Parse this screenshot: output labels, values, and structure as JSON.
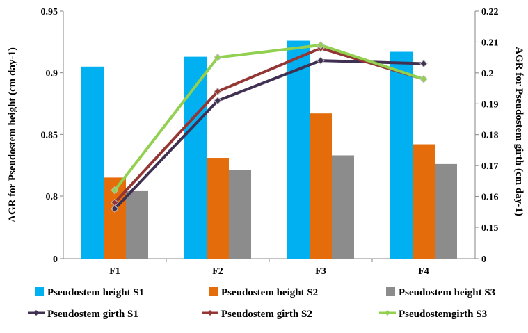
{
  "chart_data": {
    "type": "bar+line",
    "categories": [
      "F1",
      "F2",
      "F3",
      "F4"
    ],
    "left_axis": {
      "label": "AGR for Pseudostem height (cm day-1)",
      "ticks": [
        "0",
        "0.8",
        "0.85",
        "0.9",
        "0.95"
      ],
      "tick_values": [
        0,
        0.8,
        0.85,
        0.9,
        0.95
      ],
      "note": "axis break: 0 shown at bottom, scale runs 0.75 to 0.95"
    },
    "right_axis": {
      "label": "AGR for Pseudostem girth (cm day-1)",
      "ticks": [
        "0",
        "0.15",
        "0.16",
        "0.17",
        "0.18",
        "0.19",
        "0.2",
        "0.21",
        "0.22"
      ],
      "tick_values": [
        0,
        0.15,
        0.16,
        0.17,
        0.18,
        0.19,
        0.2,
        0.21,
        0.22
      ],
      "note": "axis break: 0 shown at bottom, scale runs 0.14 to 0.22"
    },
    "bar_series": [
      {
        "name": "Pseudostem height S1",
        "color": "#00b0f0",
        "values": [
          0.905,
          0.913,
          0.926,
          0.917
        ]
      },
      {
        "name": "Pseudostem height S2",
        "color": "#e46c0a",
        "values": [
          0.815,
          0.831,
          0.867,
          0.842
        ]
      },
      {
        "name": "Pseudostem height S3",
        "color": "#8c8c8c",
        "values": [
          0.804,
          0.821,
          0.833,
          0.826
        ]
      }
    ],
    "line_series": [
      {
        "name": "Pseudostem girth S1",
        "color": "#403152",
        "marker": "diamond",
        "values": [
          0.156,
          0.191,
          0.204,
          0.203
        ]
      },
      {
        "name": "Pseudostem girth S2",
        "color": "#943634",
        "marker": "diamond",
        "values": [
          0.158,
          0.194,
          0.208,
          0.198
        ]
      },
      {
        "name": "Pseudostemgirth S3",
        "color": "#92d050",
        "marker": "diamond",
        "values": [
          0.162,
          0.205,
          0.209,
          0.198
        ]
      }
    ],
    "grid": false,
    "legend_position": "bottom"
  }
}
